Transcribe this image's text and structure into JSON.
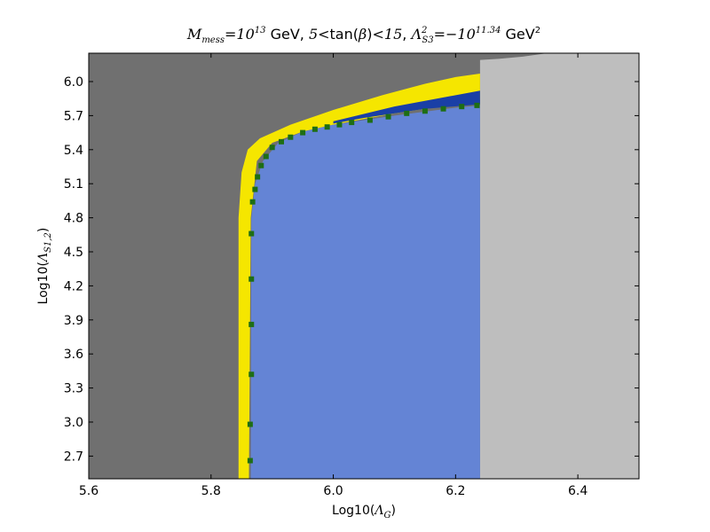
{
  "chart_data": {
    "type": "area",
    "title": {
      "lhs_symbol": "M",
      "lhs_sub": "mess",
      "eq": "=",
      "base": "10",
      "exp": "13",
      "unit1": " GeV, ",
      "tb_lower": "5",
      "tb_lt": "<",
      "tb_text": "tan(",
      "tb_beta": "β",
      "tb_close": ")",
      "tb_upper": "15",
      "sep": ", ",
      "lam_symbol": "Λ",
      "lam_sub": "S3",
      "lam_sup": "2",
      "lam_eq": "=",
      "lam_minus": "−10",
      "lam_exp": "11.34",
      "unit2": " GeV",
      "unit2_sup": "2"
    },
    "xlabel": {
      "prefix": "Log10(",
      "symbol": "Λ",
      "sub": "G",
      "suffix": ")"
    },
    "ylabel": {
      "prefix": "Log10(",
      "symbol": "Λ",
      "sub": "S1,2",
      "suffix": ")"
    },
    "xlim": [
      5.6,
      6.5
    ],
    "ylim": [
      2.5,
      6.25
    ],
    "xticks": [
      "5.6",
      "5.8",
      "6.0",
      "6.2",
      "6.4"
    ],
    "yticks": [
      "2.7",
      "3.0",
      "3.3",
      "3.6",
      "3.9",
      "4.2",
      "4.5",
      "4.8",
      "5.1",
      "5.4",
      "5.7",
      "6.0"
    ],
    "grid": false,
    "legend": "none",
    "regions": [
      {
        "color": "#707070",
        "boundary": [
          [
            5.6,
            2.5
          ],
          [
            5.6,
            6.25
          ],
          [
            6.5,
            6.25
          ],
          [
            6.5,
            2.5
          ]
        ]
      },
      {
        "color": "#bebebe",
        "boundary": [
          [
            6.24,
            2.5
          ],
          [
            6.24,
            6.19
          ],
          [
            6.27,
            6.2
          ],
          [
            6.31,
            6.22
          ],
          [
            6.35,
            6.25
          ],
          [
            6.5,
            6.25
          ],
          [
            6.5,
            2.5
          ]
        ]
      },
      {
        "color": "#f5e600",
        "boundary": [
          [
            5.845,
            2.5
          ],
          [
            5.845,
            4.8
          ],
          [
            5.85,
            5.2
          ],
          [
            5.86,
            5.4
          ],
          [
            5.88,
            5.5
          ],
          [
            5.93,
            5.62
          ],
          [
            6.0,
            5.75
          ],
          [
            6.08,
            5.88
          ],
          [
            6.15,
            5.98
          ],
          [
            6.2,
            6.04
          ],
          [
            6.24,
            6.07
          ],
          [
            6.24,
            5.84
          ],
          [
            6.2,
            5.8
          ],
          [
            6.1,
            5.72
          ],
          [
            6.0,
            5.62
          ],
          [
            5.95,
            5.56
          ],
          [
            5.9,
            5.46
          ],
          [
            5.875,
            5.3
          ],
          [
            5.865,
            4.8
          ],
          [
            5.862,
            2.5
          ]
        ]
      },
      {
        "color": "#1a3fa6",
        "boundary": [
          [
            6.0,
            5.65
          ],
          [
            6.1,
            5.78
          ],
          [
            6.2,
            5.88
          ],
          [
            6.24,
            5.92
          ],
          [
            6.24,
            5.8
          ],
          [
            6.15,
            5.76
          ],
          [
            6.05,
            5.68
          ],
          [
            6.0,
            5.63
          ]
        ]
      },
      {
        "color": "#6484d5",
        "boundary": [
          [
            5.865,
            2.5
          ],
          [
            5.866,
            4.8
          ],
          [
            5.872,
            5.1
          ],
          [
            5.885,
            5.3
          ],
          [
            5.91,
            5.46
          ],
          [
            5.95,
            5.56
          ],
          [
            6.0,
            5.62
          ],
          [
            6.1,
            5.7
          ],
          [
            6.2,
            5.77
          ],
          [
            6.24,
            5.79
          ],
          [
            6.24,
            2.5
          ]
        ]
      }
    ],
    "boundary_points": {
      "color": "#1e6e14",
      "points": [
        [
          5.864,
          2.66
        ],
        [
          5.864,
          2.98
        ],
        [
          5.866,
          3.42
        ],
        [
          5.866,
          3.86
        ],
        [
          5.866,
          4.26
        ],
        [
          5.866,
          4.66
        ],
        [
          5.868,
          4.94
        ],
        [
          5.872,
          5.05
        ],
        [
          5.876,
          5.16
        ],
        [
          5.882,
          5.26
        ],
        [
          5.89,
          5.34
        ],
        [
          5.9,
          5.42
        ],
        [
          5.915,
          5.47
        ],
        [
          5.93,
          5.51
        ],
        [
          5.95,
          5.55
        ],
        [
          5.97,
          5.58
        ],
        [
          5.99,
          5.6
        ],
        [
          6.01,
          5.62
        ],
        [
          6.03,
          5.64
        ],
        [
          6.06,
          5.66
        ],
        [
          6.09,
          5.69
        ],
        [
          6.12,
          5.72
        ],
        [
          6.15,
          5.74
        ],
        [
          6.18,
          5.76
        ],
        [
          6.21,
          5.78
        ],
        [
          6.235,
          5.79
        ]
      ]
    }
  }
}
